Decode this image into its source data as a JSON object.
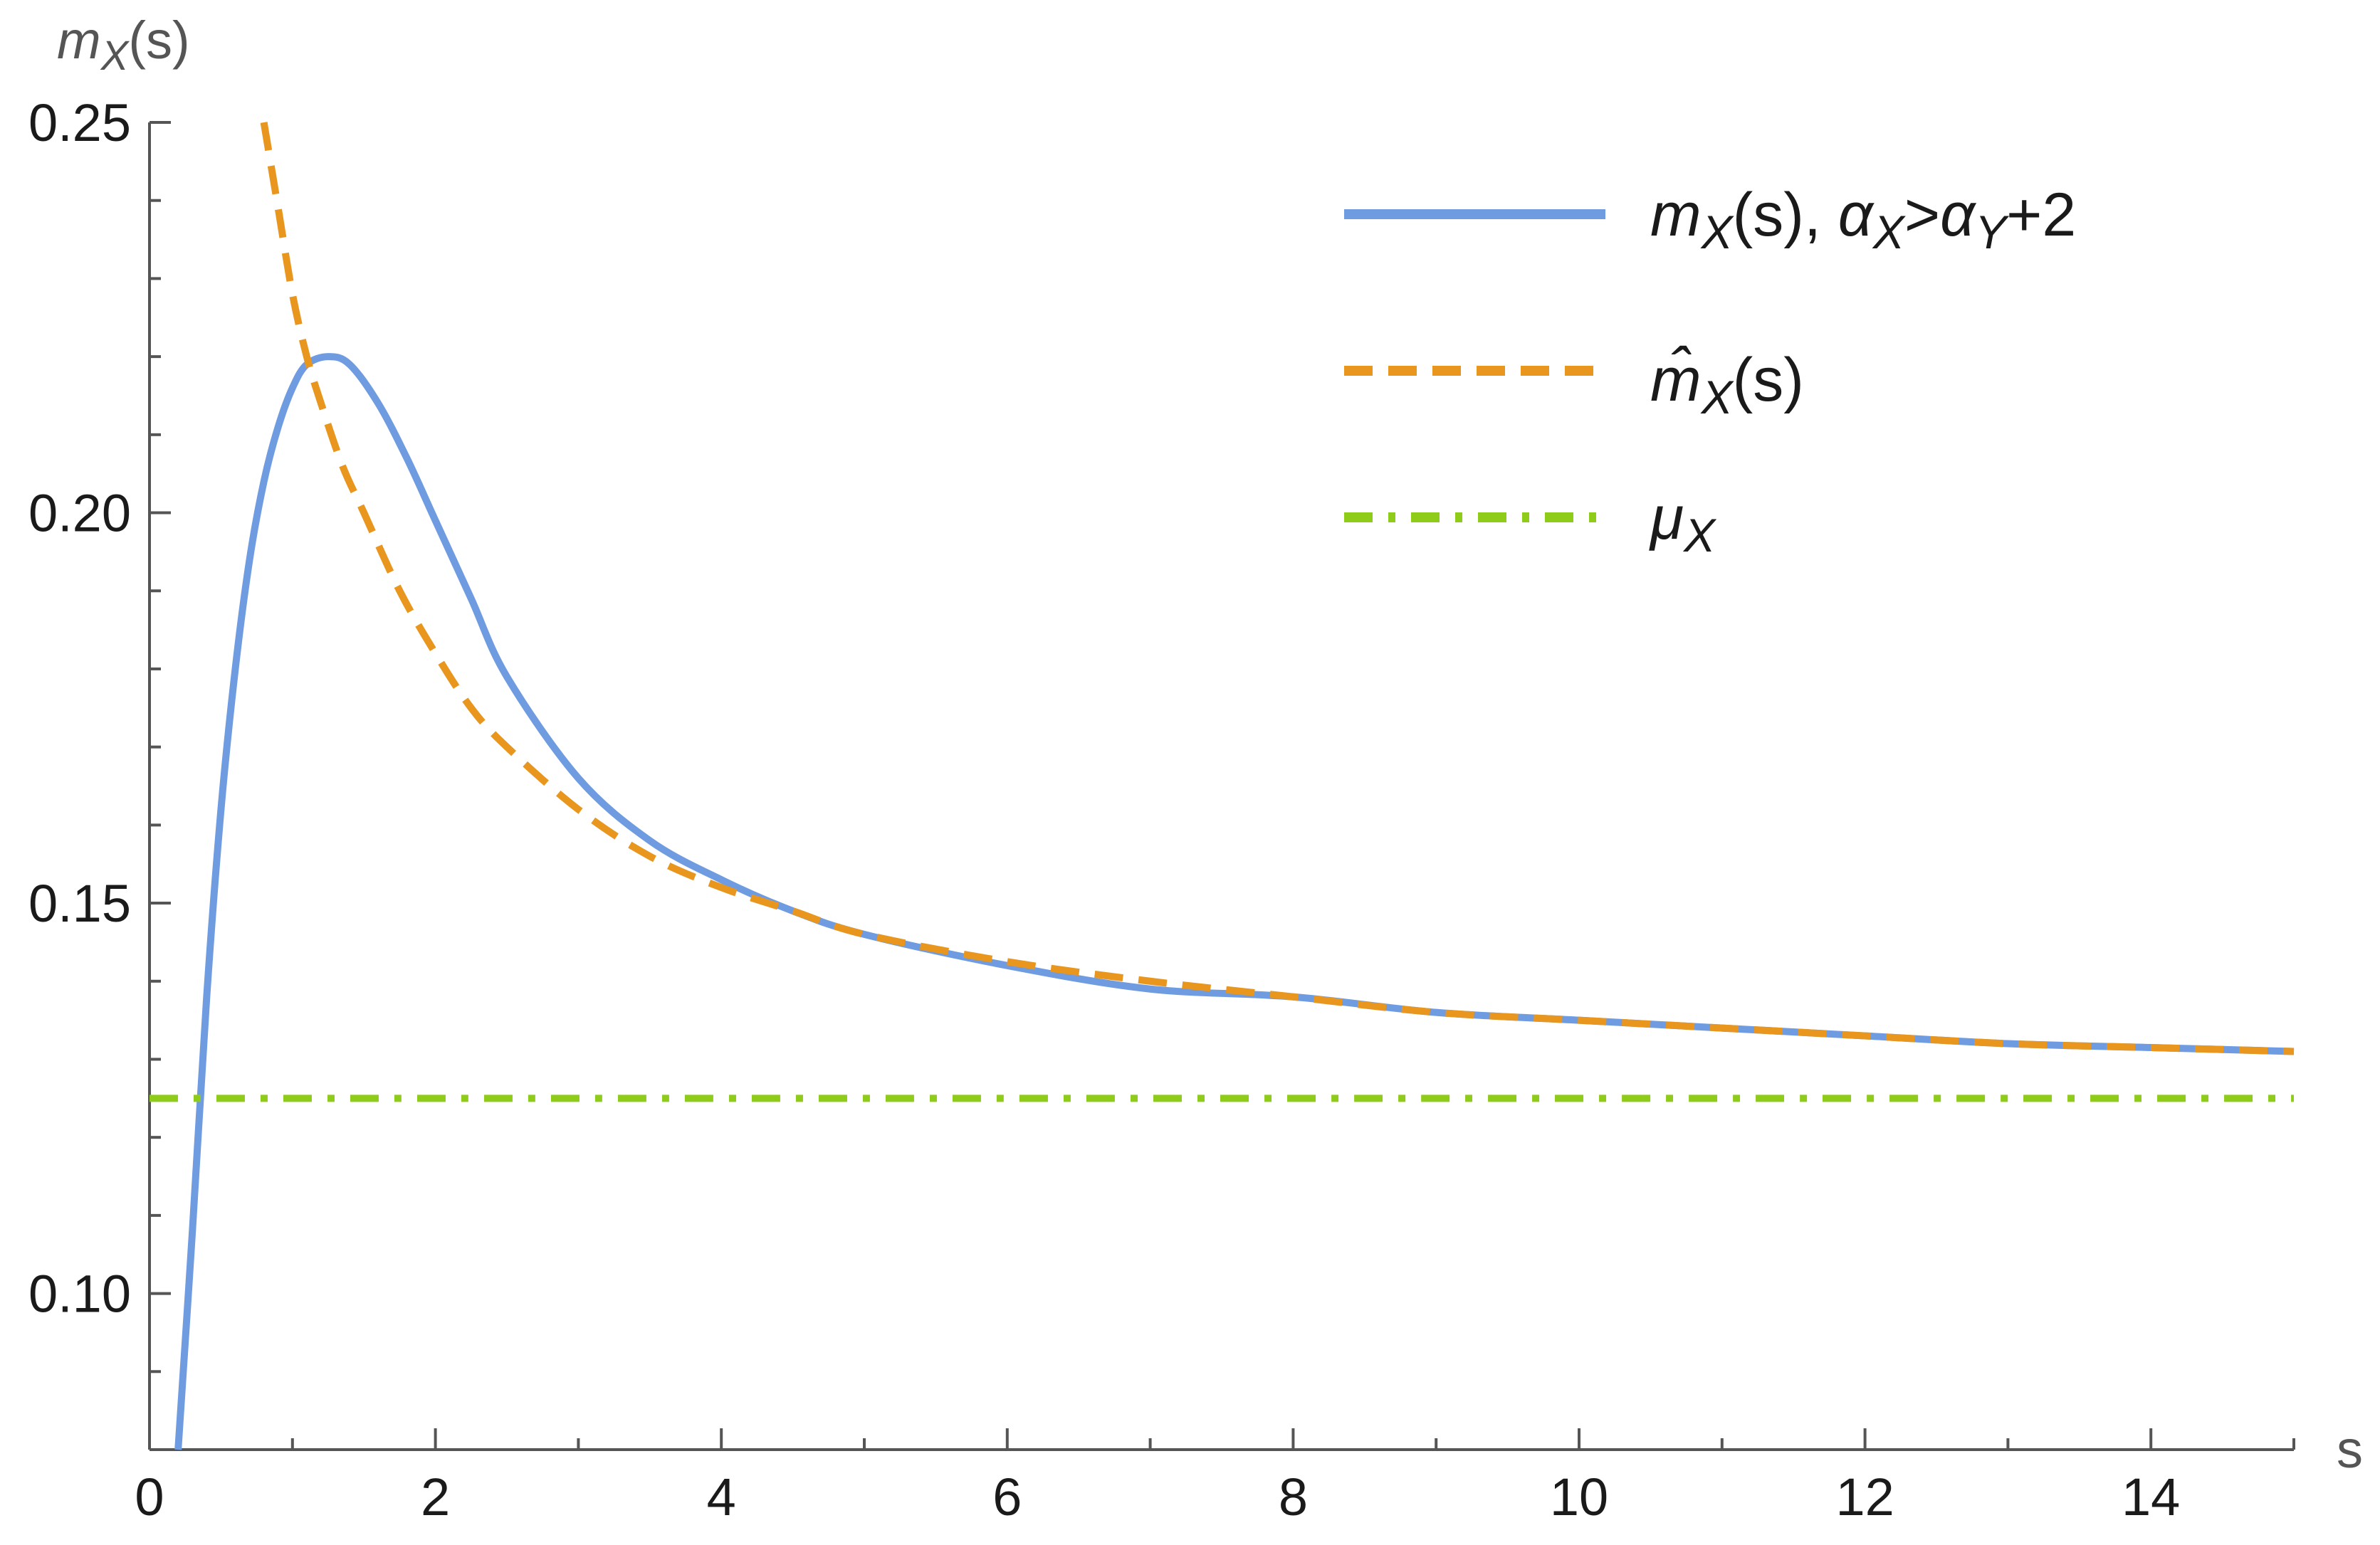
{
  "chart_data": {
    "type": "line",
    "title": "",
    "xlabel": "s",
    "ylabel": "m_X(s)",
    "ylabel_parts": {
      "main": "m",
      "sub": "X",
      "tail": "(s)"
    },
    "xlim": [
      0,
      15
    ],
    "ylim": [
      0.08,
      0.25
    ],
    "x_ticks": [
      0,
      2,
      4,
      6,
      8,
      10,
      12,
      14
    ],
    "x_tick_labels": [
      "0",
      "2",
      "4",
      "6",
      "8",
      "10",
      "12",
      "14"
    ],
    "y_ticks": [
      0.1,
      0.15,
      0.2,
      0.25
    ],
    "y_tick_labels": [
      "0.10",
      "0.15",
      "0.20",
      "0.25"
    ],
    "grid": false,
    "legend_position": "top-right",
    "series": [
      {
        "name": "m_X(s), α_X>α_Y+2",
        "legend": {
          "a": "m",
          "a_sub": "X",
          "b": "(s), ",
          "c": "α",
          "c_sub": "X",
          "d": ">",
          "e": "α",
          "e_sub": "Y",
          "f": "+2"
        },
        "color": "#6f9be0",
        "style": "solid",
        "x": [
          0.2,
          0.3,
          0.4,
          0.5,
          0.6,
          0.7,
          0.8,
          0.9,
          1.0,
          1.1,
          1.25,
          1.4,
          1.6,
          1.8,
          2.0,
          2.25,
          2.5,
          3.0,
          3.5,
          4.0,
          4.5,
          5.0,
          6.0,
          7.0,
          8.0,
          9.0,
          10.0,
          11.0,
          12.0,
          13.0,
          14.0,
          15.0
        ],
        "y": [
          0.08,
          0.108,
          0.138,
          0.162,
          0.18,
          0.194,
          0.204,
          0.211,
          0.216,
          0.219,
          0.22,
          0.219,
          0.214,
          0.207,
          0.199,
          0.189,
          0.179,
          0.166,
          0.158,
          0.153,
          0.149,
          0.146,
          0.142,
          0.139,
          0.138,
          0.136,
          0.135,
          0.134,
          0.133,
          0.132,
          0.1315,
          0.131
        ]
      },
      {
        "name": "m̂_X(s)",
        "legend": {
          "a": "m̂",
          "a_sub": "X",
          "b": "(s)"
        },
        "color": "#e8961e",
        "style": "dashed",
        "x": [
          0.8,
          0.9,
          1.0,
          1.1,
          1.2,
          1.35,
          1.5,
          1.75,
          2.0,
          2.25,
          2.5,
          3.0,
          3.5,
          4.0,
          4.5,
          5.0,
          6.0,
          7.0,
          8.0,
          9.0,
          10.0,
          11.0,
          12.0,
          13.0,
          14.0,
          15.0
        ],
        "y": [
          0.25,
          0.239,
          0.228,
          0.22,
          0.214,
          0.206,
          0.2,
          0.19,
          0.182,
          0.175,
          0.17,
          0.162,
          0.156,
          0.152,
          0.149,
          0.146,
          0.1425,
          0.14,
          0.138,
          0.136,
          0.135,
          0.134,
          0.133,
          0.132,
          0.1315,
          0.131
        ]
      },
      {
        "name": "μ_X",
        "legend": {
          "a": "μ",
          "a_sub": "X"
        },
        "color": "#8fcc1a",
        "style": "dashdot",
        "x": [
          0,
          15
        ],
        "y": [
          0.125,
          0.125
        ]
      }
    ]
  }
}
